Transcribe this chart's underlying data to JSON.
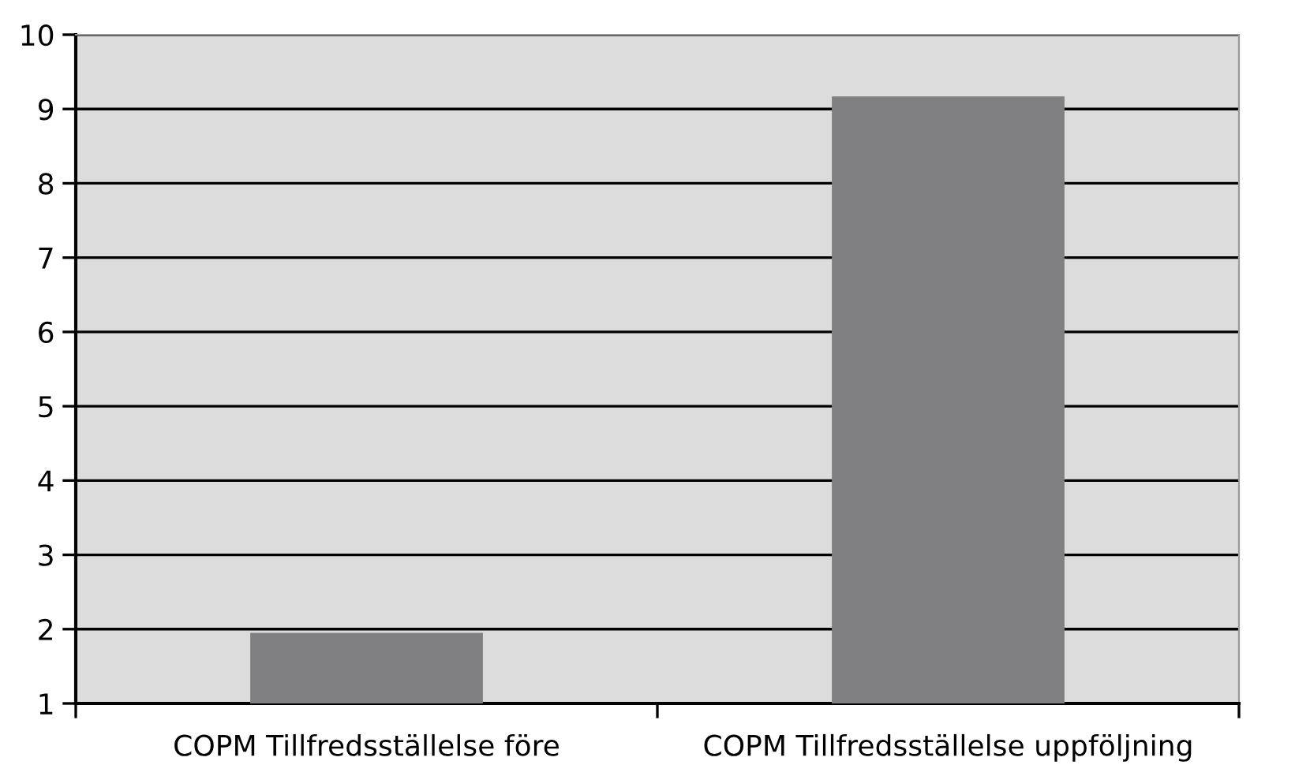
{
  "chart_data": {
    "type": "bar",
    "categories": [
      "COPM Tillfredsställelse före",
      "COPM Tillfredsställelse uppföljning"
    ],
    "values": [
      1.95,
      9.17
    ],
    "color": "#808083",
    "ylim": [
      1,
      10
    ],
    "yticks": [
      1,
      2,
      3,
      4,
      5,
      6,
      7,
      8,
      9,
      10
    ],
    "grid": "y"
  }
}
